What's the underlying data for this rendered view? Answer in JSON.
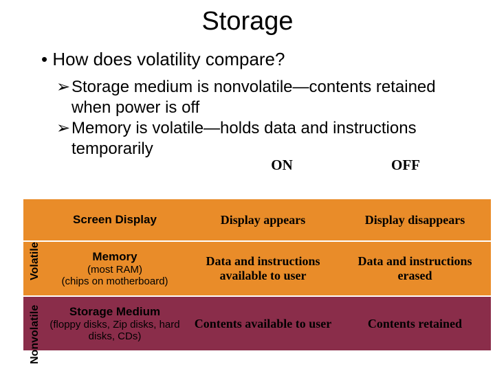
{
  "title": "Storage",
  "main_bullet": "How does volatility compare?",
  "sub_bullets": [
    "Storage medium is nonvolatile—contents retained when power is off",
    "Memory is volatile—holds data and instructions temporarily"
  ],
  "headers": {
    "on": "ON",
    "off": "OFF"
  },
  "sidebar": {
    "volatile": "Volatile",
    "nonvolatile": "Nonvolatile"
  },
  "rows": [
    {
      "kind": "volatile",
      "label_title": "Screen Display",
      "label_sub": "",
      "on_text": "Display appears",
      "off_text": "Display disappears",
      "bg_color": "#e98c29"
    },
    {
      "kind": "volatile",
      "label_title": "Memory",
      "label_sub": "(most RAM)\n(chips on motherboard)",
      "on_text": "Data and instructions available to user",
      "off_text": "Data and instructions erased",
      "bg_color": "#e98c29"
    },
    {
      "kind": "nonvolatile",
      "label_title": "Storage Medium",
      "label_sub": "(floppy disks, Zip disks, hard disks, CDs)",
      "on_text": "Contents available to user",
      "off_text": "Contents retained",
      "bg_color": "#8a2d4a"
    }
  ],
  "colors": {
    "background": "#ffffff",
    "text": "#000000",
    "volatile_row": "#e98c29",
    "nonvolatile_row": "#8a2d4a"
  }
}
